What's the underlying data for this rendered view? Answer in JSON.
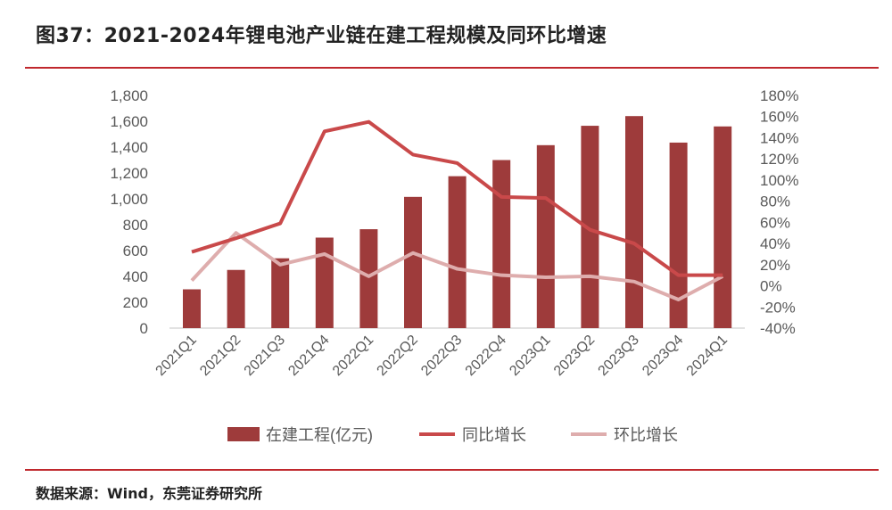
{
  "title": "图37：2021-2024年锂电池产业链在建工程规模及同环比增速",
  "source": "数据来源：Wind，东莞证券研究所",
  "colors": {
    "bar": "#9E3B3B",
    "yoy": "#C9494A",
    "qoq": "#DEADAD",
    "rule": "#C0282D"
  },
  "chart_data": {
    "type": "bar+line",
    "categories": [
      "2021Q1",
      "2021Q2",
      "2021Q3",
      "2021Q4",
      "2022Q1",
      "2022Q2",
      "2022Q3",
      "2022Q4",
      "2023Q1",
      "2023Q2",
      "2023Q3",
      "2023Q4",
      "2024Q1"
    ],
    "series": [
      {
        "name": "在建工程(亿元)",
        "type": "bar",
        "axis": "left",
        "values": [
          300,
          450,
          540,
          700,
          765,
          1015,
          1175,
          1300,
          1415,
          1565,
          1640,
          1435,
          1560
        ]
      },
      {
        "name": "同比增长",
        "type": "line",
        "axis": "right",
        "values": [
          32,
          45,
          59,
          146,
          155,
          124,
          116,
          84,
          83,
          53,
          40,
          10,
          10
        ]
      },
      {
        "name": "环比增长",
        "type": "line",
        "axis": "right",
        "values": [
          5,
          50,
          20,
          30,
          9,
          31,
          16,
          10,
          8,
          9,
          4,
          -13,
          9
        ]
      }
    ],
    "left_axis": {
      "ylim": [
        0,
        1800
      ],
      "ticks": [
        "0",
        "200",
        "400",
        "600",
        "800",
        "1,000",
        "1,200",
        "1,400",
        "1,600",
        "1,800"
      ]
    },
    "right_axis": {
      "ylim": [
        -40,
        180
      ],
      "ticks": [
        "-40%",
        "-20%",
        "0%",
        "20%",
        "40%",
        "60%",
        "80%",
        "100%",
        "120%",
        "140%",
        "160%",
        "180%"
      ]
    },
    "legend": "bottom"
  }
}
